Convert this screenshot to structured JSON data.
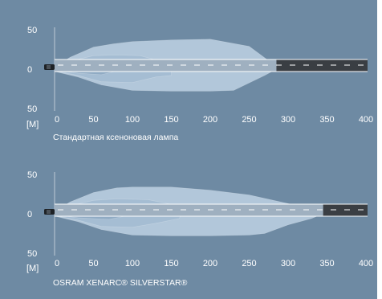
{
  "colors": {
    "background": "#6e8aa3",
    "beam_outer": "#b9cde0",
    "beam_mid": "#a3bbd2",
    "beam_inner": "#8eaac3",
    "road": "#3a3e43",
    "road_line": "#ffffff"
  },
  "chart_data": [
    {
      "type": "area",
      "title": "Стандартная ксеноновая лампа",
      "xlabel": "",
      "ylabel": "",
      "unit_label": "[M]",
      "xlim": [
        0,
        400
      ],
      "ylim": [
        -50,
        50
      ],
      "x_tick_labels": [
        "0",
        "50",
        "100",
        "150",
        "200",
        "250",
        "300",
        "350",
        "400"
      ],
      "y_tick_labels": [
        "50",
        "0",
        "50"
      ],
      "beam_reach": 285,
      "series": [
        {
          "x": [
            0,
            20,
            50,
            75,
            100,
            150,
            200,
            250,
            280,
            285,
            270,
            230,
            200,
            150,
            100,
            60,
            30,
            0
          ],
          "y": [
            3,
            15,
            28,
            32,
            35,
            37,
            38,
            29,
            7,
            0,
            -8,
            -27,
            -28,
            -28,
            -27,
            -20,
            -10,
            -3
          ]
        },
        {
          "x": [
            0,
            20,
            50,
            80,
            110,
            140,
            150,
            150,
            130,
            100,
            60,
            30,
            0
          ],
          "y": [
            2,
            10,
            17,
            18,
            17,
            9,
            3,
            -8,
            -10,
            -17,
            -16,
            -8,
            -2
          ]
        },
        {
          "x": [
            0,
            20,
            40,
            60,
            80,
            90,
            60,
            30,
            0
          ],
          "y": [
            1,
            6,
            9,
            9,
            5,
            0,
            -7,
            -5,
            -1
          ]
        }
      ]
    },
    {
      "type": "area",
      "title": "OSRAM XENARC® SILVERSTAR®",
      "xlabel": "",
      "ylabel": "",
      "unit_label": "[M]",
      "xlim": [
        0,
        400
      ],
      "ylim": [
        -50,
        50
      ],
      "x_tick_labels": [
        "0",
        "50",
        "100",
        "150",
        "200",
        "250",
        "300",
        "350",
        "400"
      ],
      "y_tick_labels": [
        "50",
        "0",
        "50"
      ],
      "beam_reach": 345,
      "series": [
        {
          "x": [
            0,
            20,
            50,
            80,
            100,
            150,
            200,
            250,
            300,
            340,
            345,
            330,
            300,
            270,
            250,
            200,
            150,
            100,
            60,
            30,
            0
          ],
          "y": [
            3,
            15,
            27,
            33,
            34,
            34,
            30,
            24,
            13,
            5,
            0,
            -6,
            -14,
            -25,
            -27,
            -28,
            -28,
            -27,
            -20,
            -10,
            -3
          ]
        },
        {
          "x": [
            0,
            20,
            50,
            80,
            120,
            160,
            165,
            160,
            130,
            100,
            60,
            30,
            0
          ],
          "y": [
            2,
            10,
            17,
            19,
            18,
            10,
            3,
            -6,
            -12,
            -17,
            -16,
            -8,
            -2
          ]
        },
        {
          "x": [
            0,
            20,
            40,
            70,
            100,
            105,
            70,
            30,
            0
          ],
          "y": [
            1,
            6,
            9,
            9,
            5,
            0,
            -7,
            -5,
            -1
          ]
        }
      ]
    }
  ]
}
